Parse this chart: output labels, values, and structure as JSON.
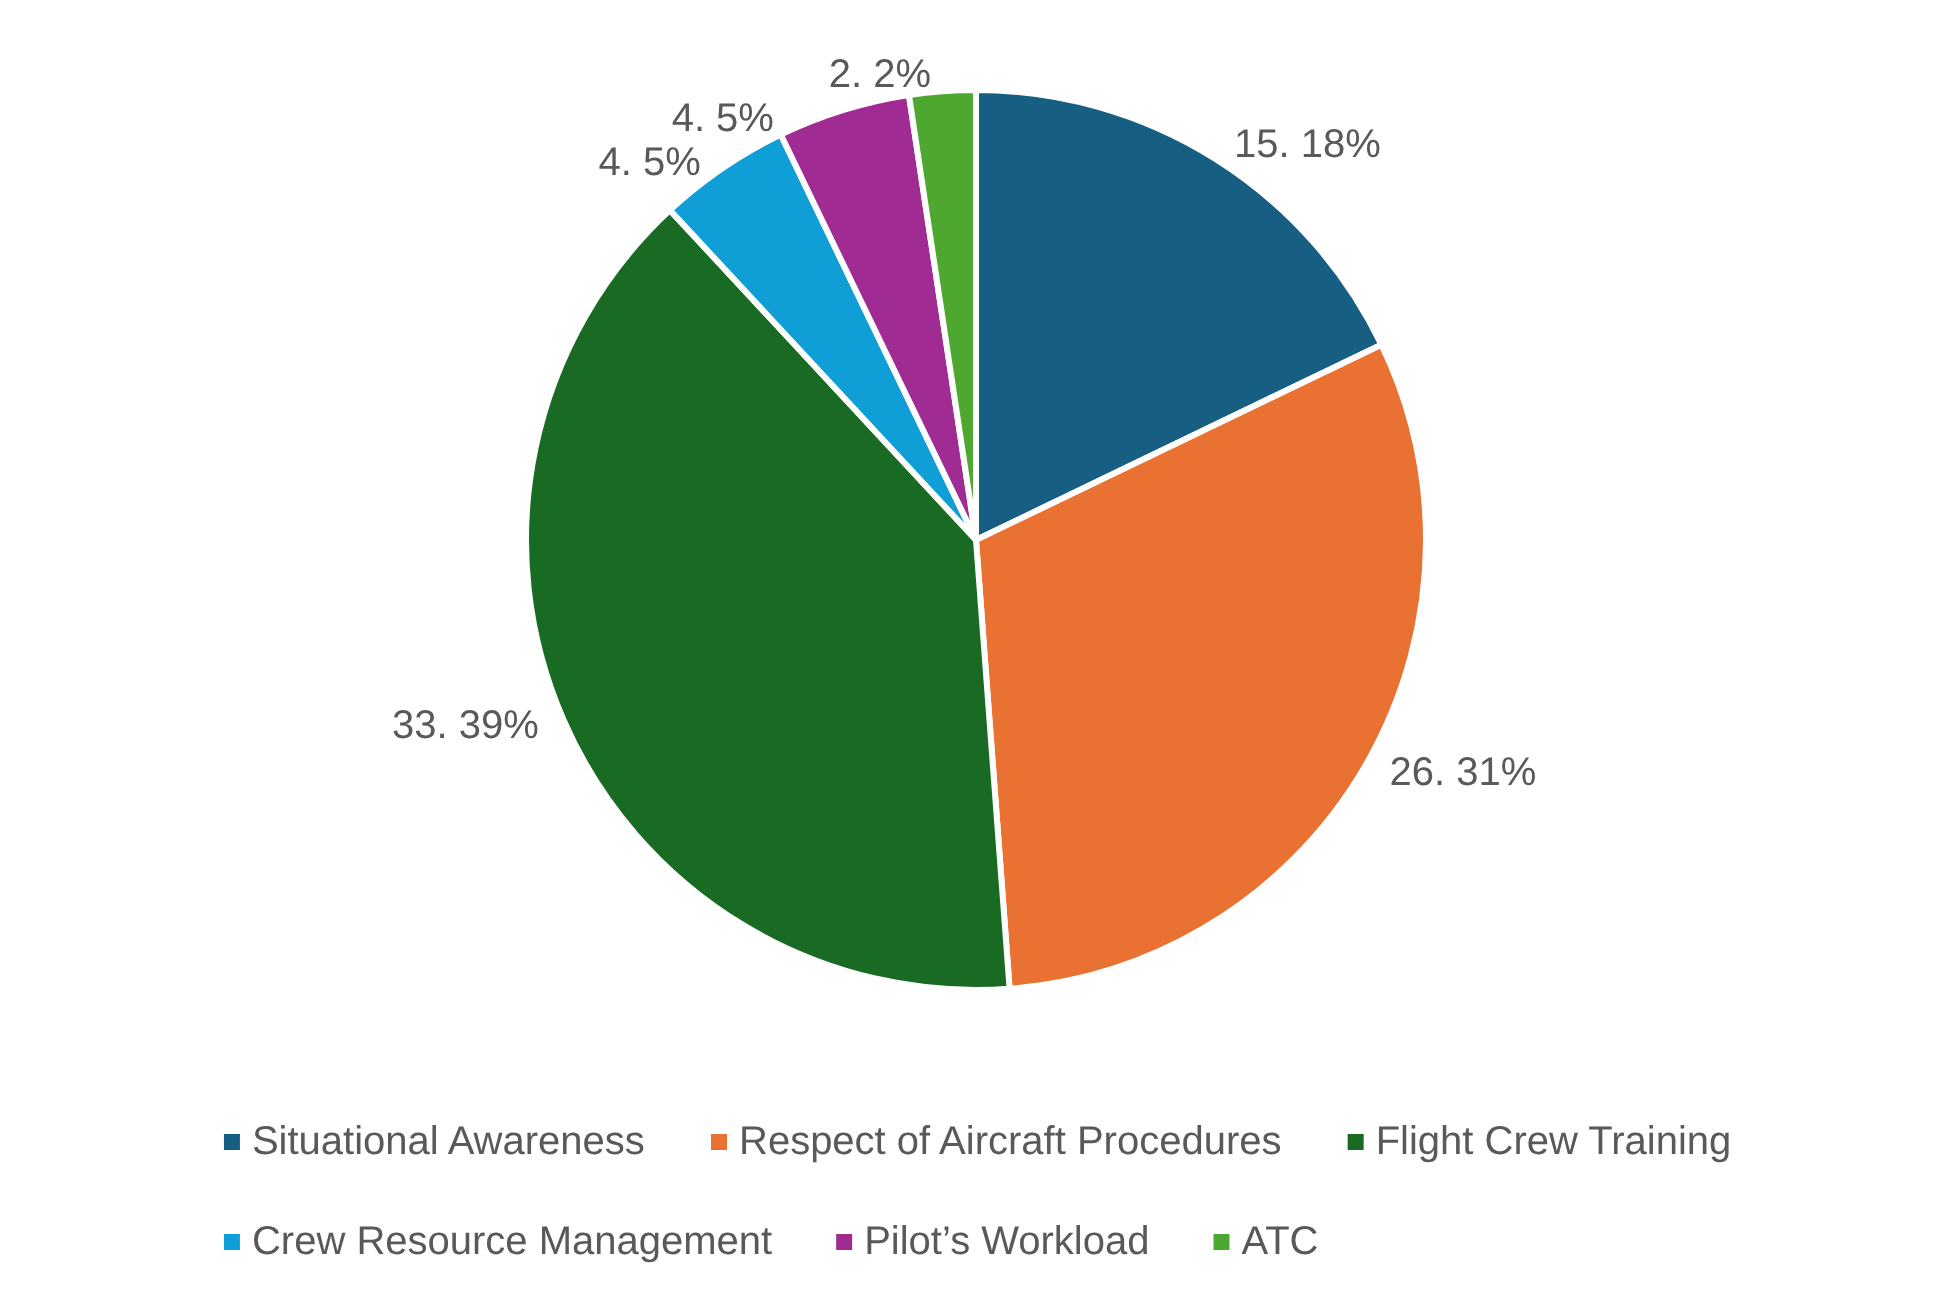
{
  "chart_data": {
    "type": "pie",
    "categories": [
      "Situational Awareness",
      "Respect of Aircraft Procedures",
      "Flight Crew Training",
      "Crew Resource Management",
      "Pilot’s Workload",
      "ATC"
    ],
    "values": [
      15,
      26,
      33,
      4,
      4,
      2
    ],
    "value_labels": [
      "15. 18%",
      "26. 31%",
      "33. 39%",
      "4. 5%",
      "4. 5%",
      "2. 2%"
    ],
    "colors": [
      "#175e83",
      "#e97132",
      "#196b24",
      "#0f9ed5",
      "#a02b93",
      "#4ea72e"
    ],
    "legend": "bottom"
  }
}
